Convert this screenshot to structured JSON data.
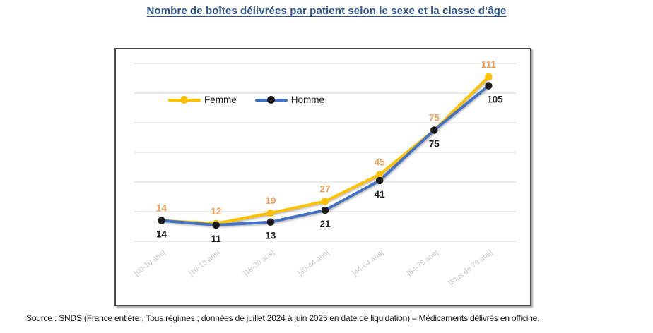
{
  "title": {
    "text": "Nombre de boîtes délivrées par patient selon le sexe et la classe d’âge",
    "color": "#2F5496"
  },
  "source": {
    "text": "Source : SNDS (France entière ; Tous régimes ; données de juillet 2024 à juin 2025 en date de liquidation) – Médicaments délivrés en officine."
  },
  "chart_data": {
    "type": "line",
    "title": "",
    "xlabel": "",
    "ylabel": "",
    "categories": [
      "[00-10 ans]",
      "]10-18 ans]",
      "]18-30 ans]",
      "]30-44 ans]",
      "]44-64 ans]",
      "]64-79 ans]",
      "]Plus de 79 ans]"
    ],
    "series": [
      {
        "name": "Femme",
        "values": [
          14,
          12,
          19,
          27,
          45,
          75,
          111
        ],
        "line_color": "#FFC000",
        "marker_color": "#FFC000",
        "label_color": "#F0A05A"
      },
      {
        "name": "Homme",
        "values": [
          14,
          11,
          13,
          21,
          41,
          75,
          105
        ],
        "line_color": "#4472C4",
        "marker_color": "#1A1A1A",
        "label_color": "#1F1F1F"
      }
    ],
    "ylim": [
      0,
      120
    ],
    "gridline_step": 20,
    "grid": true,
    "gridline_color": "#D9D9D9",
    "axis_label_color": "#C8C8C8",
    "legend_position": "inside-top-left",
    "data_labels": true
  }
}
